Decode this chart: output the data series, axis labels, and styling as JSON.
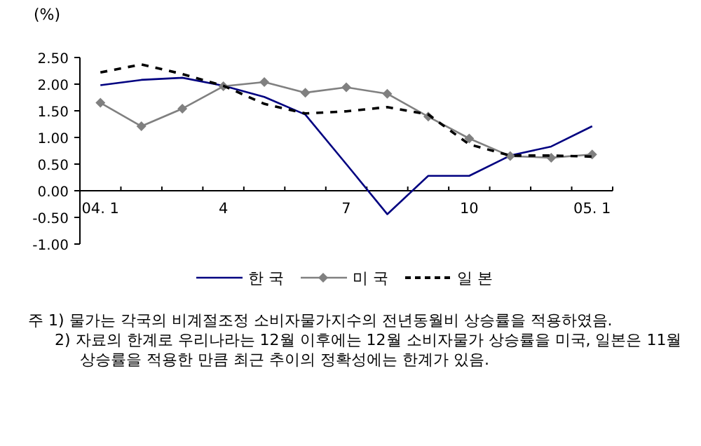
{
  "chart_data": {
    "type": "line",
    "ylabel": "(%)",
    "categories": [
      "04. 1",
      null,
      null,
      "4",
      null,
      null,
      "7",
      null,
      null,
      "10",
      null,
      null,
      "05. 1"
    ],
    "ylim": [
      -1,
      2.5
    ],
    "yticks": [
      {
        "value": -1,
        "label": "-1.00"
      },
      {
        "value": -0.5,
        "label": "-0.50"
      },
      {
        "value": 0,
        "label": "0.00"
      },
      {
        "value": 0.5,
        "label": "0.50"
      },
      {
        "value": 1,
        "label": "1.00"
      },
      {
        "value": 1.5,
        "label": "1.50"
      },
      {
        "value": 2,
        "label": "2.00"
      },
      {
        "value": 2.5,
        "label": "2.50"
      }
    ],
    "grid": false,
    "legend": "bottom",
    "series": [
      {
        "name": "한 국",
        "color": "#000080",
        "line_style": "solid",
        "marker": "none",
        "values": [
          1.98,
          2.08,
          2.12,
          1.97,
          1.76,
          1.43,
          0.5,
          -0.44,
          0.28,
          0.28,
          0.66,
          0.83,
          1.21
        ]
      },
      {
        "name": "미 국",
        "color": "#808080",
        "line_style": "solid",
        "marker": "diamond",
        "values": [
          1.65,
          1.21,
          1.54,
          1.96,
          2.04,
          1.84,
          1.94,
          1.82,
          1.39,
          0.98,
          0.65,
          0.62,
          0.68
        ]
      },
      {
        "name": "일 본",
        "color": "#000000",
        "line_style": "dashed",
        "marker": "none",
        "values": [
          2.22,
          2.37,
          2.19,
          1.97,
          1.63,
          1.45,
          1.49,
          1.57,
          1.43,
          0.87,
          0.66,
          0.66,
          0.64
        ]
      }
    ],
    "annotations": [
      "주 1) 물가는 각국의 비계절조정 소비자물가지수의 전년동월비 상승률을 적용하였음.",
      "2) 자료의 한계로 우리나라는 12월 이후에는 12월 소비자물가 상승률을 미국, 일본은 11월 상승률을 적용한 만큼 최근 추이의 정확성에는 한계가 있음."
    ]
  }
}
